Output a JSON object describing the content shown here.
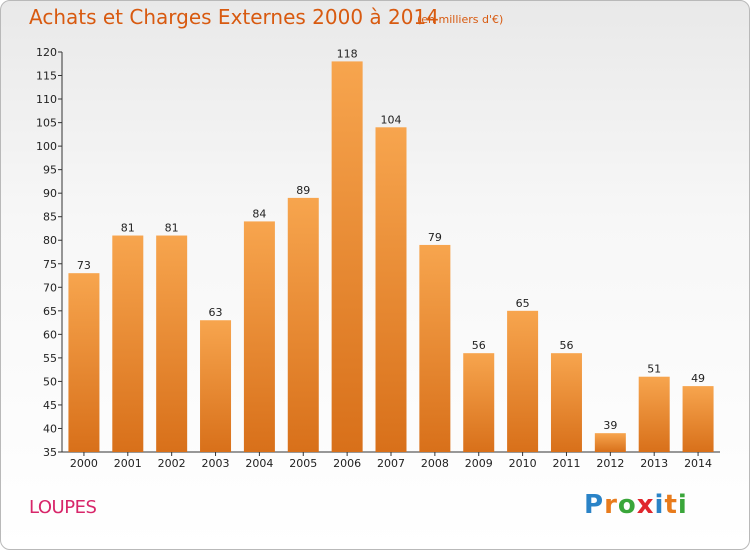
{
  "header": {
    "title": "Achats et Charges Externes 2000 à 2014",
    "subtitle": "(en milliers d'€)"
  },
  "footer": {
    "commune": "LOUPES",
    "logo_text": "Proxiti"
  },
  "colors": {
    "title": "#d85a10",
    "commune": "#d8266a",
    "bar_light": "#f7a54e",
    "bar_dark": "#d8701a",
    "logo_letters": [
      "#2a83c7",
      "#e87b1c",
      "#3aa63a",
      "#e0262c",
      "#2a83c7",
      "#e87b1c",
      "#3aa63a"
    ]
  },
  "chart_data": {
    "type": "bar",
    "title": "Achats et Charges Externes 2000 à 2014",
    "subtitle": "(en milliers d'€)",
    "categories": [
      "2000",
      "2001",
      "2002",
      "2003",
      "2004",
      "2005",
      "2006",
      "2007",
      "2008",
      "2009",
      "2010",
      "2011",
      "2012",
      "2013",
      "2014"
    ],
    "values": [
      73,
      81,
      81,
      63,
      84,
      89,
      118,
      104,
      79,
      56,
      65,
      56,
      39,
      51,
      49
    ],
    "ylim": [
      35,
      120
    ],
    "yticks": [
      35,
      40,
      45,
      50,
      55,
      60,
      65,
      70,
      75,
      80,
      85,
      90,
      95,
      100,
      105,
      110,
      115,
      120
    ],
    "grid": false,
    "legend": "none"
  }
}
